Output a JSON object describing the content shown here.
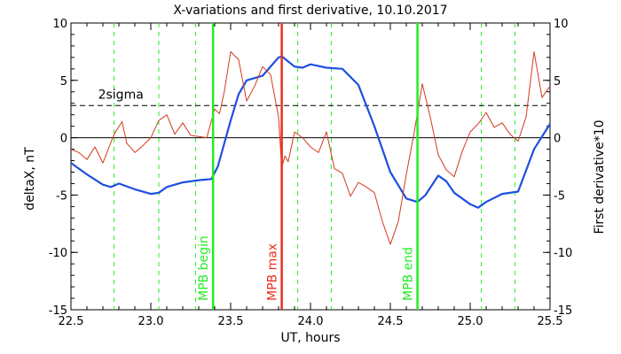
{
  "chart_data": {
    "type": "line",
    "title": "X-variations and first derivative, 10.10.2017",
    "xlabel": "UT, hours",
    "ylabel_left": "deltaX, nT",
    "ylabel_right": "First derivative*10",
    "xlim": [
      22.5,
      25.5
    ],
    "ylim": [
      -15,
      10
    ],
    "x_ticks": [
      "22.5",
      "23.0",
      "23.5",
      "24.0",
      "24.5",
      "25.0",
      "25.5"
    ],
    "x_tick_values": [
      22.5,
      23.0,
      23.5,
      24.0,
      24.5,
      25.0,
      25.5
    ],
    "y_ticks": [
      "-15",
      "-10",
      "-5",
      "0",
      "5",
      "10"
    ],
    "y_tick_values": [
      -15,
      -10,
      -5,
      0,
      5,
      10
    ],
    "colors": {
      "deltaX": "#1f4fe0",
      "derivative": "#d23a1e",
      "mpb_lines": "#22ee22",
      "max_line": "#e8301c"
    },
    "sigma": {
      "label": "2sigma",
      "value": 2.8
    },
    "zero_line": 0,
    "dashed_verticals": [
      22.77,
      23.05,
      23.28,
      23.92,
      24.13,
      25.07,
      25.28
    ],
    "events": [
      {
        "name": "MPB begin",
        "x": 23.39,
        "color": "#22ee22"
      },
      {
        "name": "MPB max",
        "x": 23.82,
        "color": "#e8301c"
      },
      {
        "name": "MPB end",
        "x": 24.67,
        "color": "#22ee22"
      }
    ],
    "series": [
      {
        "name": "deltaX",
        "axis": "left",
        "x": [
          22.5,
          22.6,
          22.7,
          22.75,
          22.8,
          22.9,
          23.0,
          23.05,
          23.1,
          23.2,
          23.3,
          23.38,
          23.42,
          23.5,
          23.55,
          23.6,
          23.7,
          23.8,
          23.82,
          23.9,
          23.95,
          24.0,
          24.1,
          24.2,
          24.3,
          24.4,
          24.5,
          24.6,
          24.67,
          24.72,
          24.8,
          24.85,
          24.9,
          25.0,
          25.05,
          25.1,
          25.2,
          25.3,
          25.4,
          25.5
        ],
        "values": [
          -2.2,
          -3.2,
          -4.1,
          -4.3,
          -4.0,
          -4.5,
          -4.9,
          -4.8,
          -4.3,
          -3.9,
          -3.7,
          -3.6,
          -2.5,
          1.5,
          3.8,
          5.0,
          5.4,
          7.0,
          7.1,
          6.2,
          6.1,
          6.4,
          6.1,
          6.0,
          4.6,
          1.0,
          -3.0,
          -5.3,
          -5.6,
          -5.0,
          -3.3,
          -3.8,
          -4.8,
          -5.8,
          -6.1,
          -5.6,
          -4.9,
          -4.7,
          -1.0,
          1.2
        ]
      },
      {
        "name": "First derivative*10",
        "axis": "right",
        "x": [
          22.5,
          22.55,
          22.6,
          22.65,
          22.7,
          22.77,
          22.82,
          22.85,
          22.9,
          22.95,
          23.0,
          23.05,
          23.1,
          23.15,
          23.2,
          23.25,
          23.3,
          23.35,
          23.4,
          23.43,
          23.46,
          23.5,
          23.55,
          23.6,
          23.65,
          23.7,
          23.75,
          23.8,
          23.82,
          23.84,
          23.86,
          23.9,
          23.95,
          24.0,
          24.05,
          24.1,
          24.15,
          24.2,
          24.25,
          24.3,
          24.35,
          24.4,
          24.45,
          24.5,
          24.52,
          24.55,
          24.6,
          24.65,
          24.7,
          24.75,
          24.8,
          24.85,
          24.9,
          24.95,
          25.0,
          25.05,
          25.1,
          25.15,
          25.2,
          25.25,
          25.3,
          25.35,
          25.4,
          25.45,
          25.5
        ],
        "values": [
          -1.0,
          -1.3,
          -1.9,
          -0.8,
          -2.2,
          0.3,
          1.4,
          -0.5,
          -1.3,
          -0.7,
          0.0,
          1.5,
          2.0,
          0.3,
          1.3,
          0.2,
          0.1,
          0.0,
          2.5,
          2.1,
          4.0,
          7.5,
          6.8,
          3.2,
          4.5,
          6.2,
          5.5,
          1.8,
          -2.6,
          -1.6,
          -2.1,
          0.5,
          0.0,
          -0.8,
          -1.3,
          0.5,
          -2.7,
          -3.1,
          -5.1,
          -3.9,
          -4.3,
          -4.8,
          -7.3,
          -9.3,
          -8.5,
          -7.3,
          -3.2,
          0.5,
          4.7,
          1.8,
          -1.5,
          -2.8,
          -3.4,
          -1.2,
          0.5,
          1.2,
          2.2,
          0.9,
          1.3,
          0.3,
          -0.3,
          1.8,
          7.5,
          3.5,
          4.5
        ]
      }
    ]
  }
}
